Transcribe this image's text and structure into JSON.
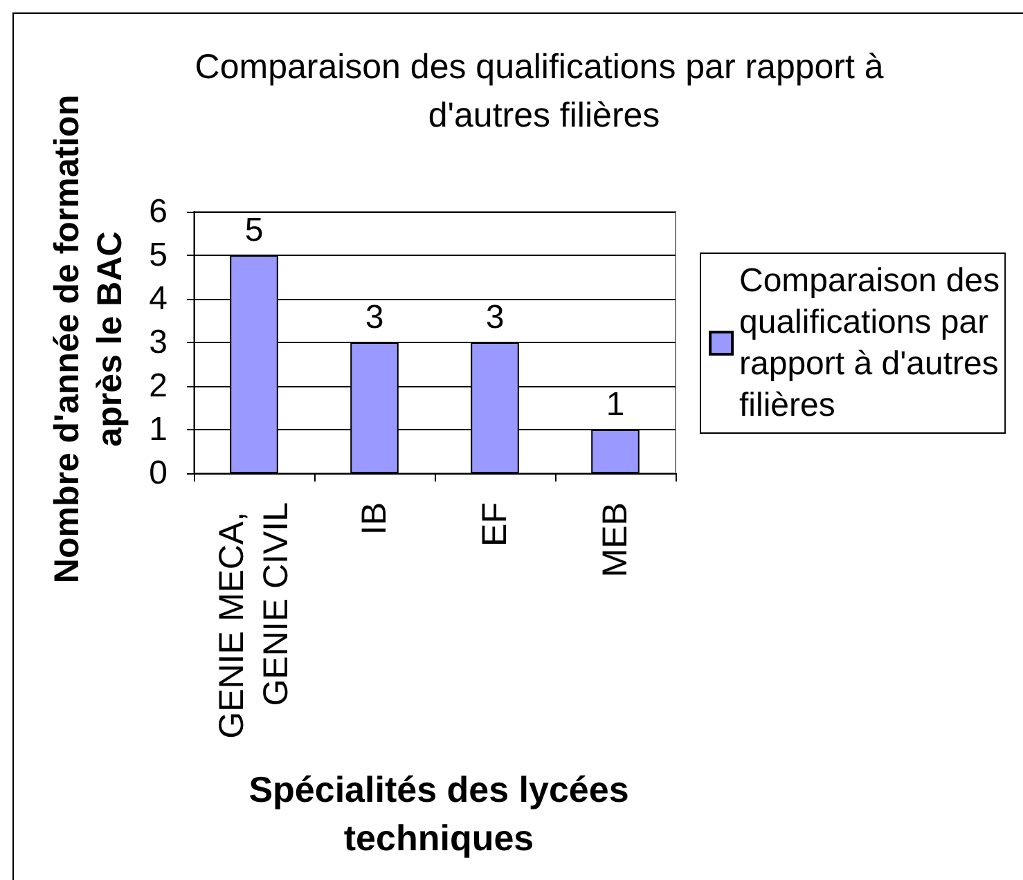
{
  "chart_data": {
    "type": "bar",
    "title": "Comparaison des qualifications par rapport à d'autres filières",
    "xlabel": "Spécialités des lycées techniques",
    "ylabel": "Nombre d'année de formation après le BAC",
    "categories": [
      "GENIE MECA, GENIE CIVIL",
      "IB",
      "EF",
      "MEB"
    ],
    "series": [
      {
        "name": "Comparaison des qualifications par rapport à d'autres filières",
        "color": "#9999ff",
        "values": [
          5,
          3,
          3,
          1
        ]
      }
    ],
    "ylim": [
      0,
      6
    ],
    "yticks": [
      0,
      1,
      2,
      3,
      4,
      5,
      6
    ],
    "grid": "y",
    "legend": "right",
    "data_labels": true
  }
}
